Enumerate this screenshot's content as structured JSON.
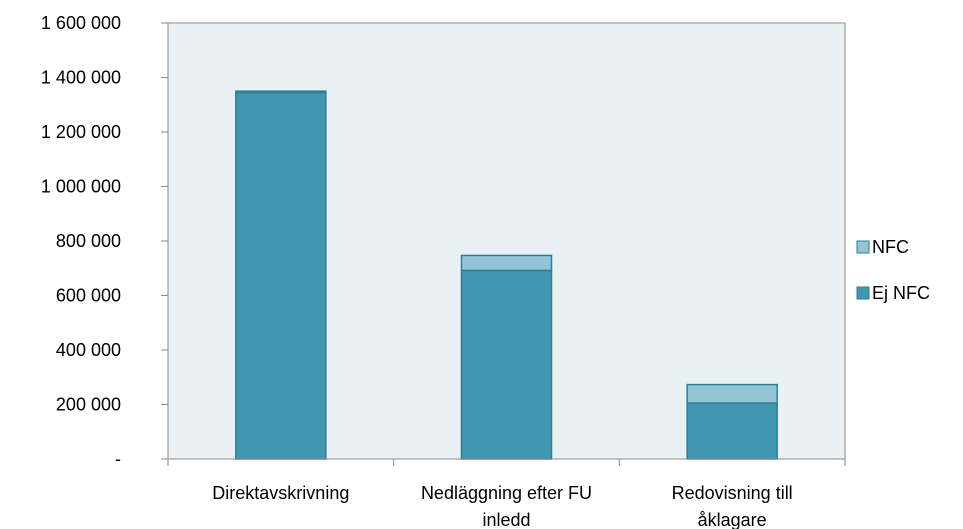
{
  "chart_data": {
    "type": "bar",
    "stacked": true,
    "categories": [
      [
        "Direktavskrivning"
      ],
      [
        "Nedläggning efter FU",
        "inledd"
      ],
      [
        "Redovisning till",
        "åklagare"
      ]
    ],
    "series": [
      {
        "name": "Ej NFC",
        "values": [
          1345000,
          692000,
          205000
        ],
        "color": "#4197af"
      },
      {
        "name": "NFC",
        "values": [
          5000,
          55000,
          68000
        ],
        "color": "#93c5d6"
      }
    ],
    "ylim": [
      0,
      1600000
    ],
    "yticks": [
      0,
      200000,
      400000,
      600000,
      800000,
      1000000,
      1200000,
      1400000,
      1600000
    ],
    "ytick_labels": [
      "-",
      "200 000",
      "400 000",
      "600 000",
      "800 000",
      "1 000 000",
      "1 200 000",
      "1 400 000",
      "1 600 000"
    ],
    "legend": [
      "NFC",
      "Ej NFC"
    ],
    "legend_position": "right",
    "plot_background": "#e9f1f4",
    "bar_edge_color": "#2e7f95",
    "grid": false,
    "title": "",
    "xlabel": "",
    "ylabel": ""
  }
}
